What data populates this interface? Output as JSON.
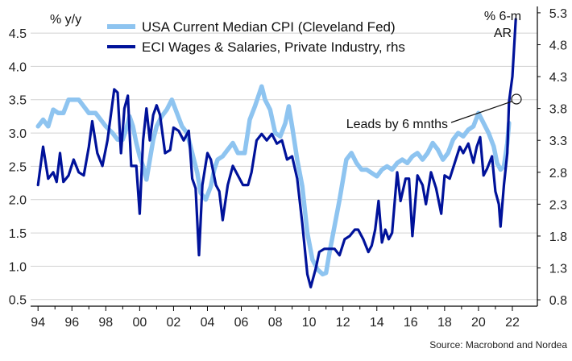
{
  "chart_data": {
    "type": "line",
    "left_axis_label": "% y/y",
    "right_axis_label_line1": "% 6-m",
    "right_axis_label_line2": "AR",
    "left_ylim": [
      0.4,
      4.9
    ],
    "right_ylim": [
      0.7,
      5.4
    ],
    "left_ticks": [
      "0.5",
      "1.0",
      "1.5",
      "2.0",
      "2.5",
      "3.0",
      "3.5",
      "4.0",
      "4.5"
    ],
    "right_ticks": [
      "0.8",
      "1.3",
      "1.8",
      "2.3",
      "2.8",
      "3.3",
      "3.8",
      "4.3",
      "4.8",
      "5.3"
    ],
    "x_range": [
      1993.8,
      2023.0
    ],
    "x_ticks": [
      "94",
      "96",
      "98",
      "00",
      "02",
      "04",
      "06",
      "08",
      "10",
      "12",
      "14",
      "16",
      "18",
      "20",
      "22"
    ],
    "annotation": "Leads by 6 mnths",
    "source": "Source: Macrobond and Nordea",
    "colors": {
      "cpi": "#8ec4f0",
      "eci": "#00129a",
      "grid": "#d2d2d2",
      "axis": "#000000"
    },
    "series": [
      {
        "name": "USA Current Median CPI (Cleveland Fed)",
        "axis": "left",
        "points": [
          [
            1994.0,
            3.1
          ],
          [
            1994.3,
            3.2
          ],
          [
            1994.6,
            3.1
          ],
          [
            1994.9,
            3.35
          ],
          [
            1995.2,
            3.3
          ],
          [
            1995.5,
            3.3
          ],
          [
            1995.8,
            3.5
          ],
          [
            1996.1,
            3.5
          ],
          [
            1996.4,
            3.5
          ],
          [
            1996.7,
            3.4
          ],
          [
            1997.0,
            3.3
          ],
          [
            1997.4,
            3.3
          ],
          [
            1997.7,
            3.2
          ],
          [
            1998.0,
            3.1
          ],
          [
            1998.4,
            3.0
          ],
          [
            1998.7,
            2.9
          ],
          [
            1999.0,
            2.9
          ],
          [
            1999.2,
            3.05
          ],
          [
            1999.4,
            3.25
          ],
          [
            1999.6,
            3.1
          ],
          [
            1999.8,
            2.85
          ],
          [
            2000.0,
            2.65
          ],
          [
            2000.2,
            2.5
          ],
          [
            2000.4,
            2.3
          ],
          [
            2000.6,
            2.6
          ],
          [
            2000.8,
            2.9
          ],
          [
            2001.0,
            3.1
          ],
          [
            2001.3,
            3.25
          ],
          [
            2001.6,
            3.35
          ],
          [
            2001.9,
            3.5
          ],
          [
            2002.2,
            3.3
          ],
          [
            2002.5,
            3.1
          ],
          [
            2002.8,
            3.0
          ],
          [
            2003.1,
            2.7
          ],
          [
            2003.4,
            2.4
          ],
          [
            2003.6,
            2.1
          ],
          [
            2003.9,
            2.0
          ],
          [
            2004.2,
            2.2
          ],
          [
            2004.4,
            2.45
          ],
          [
            2004.6,
            2.6
          ],
          [
            2004.9,
            2.65
          ],
          [
            2005.2,
            2.75
          ],
          [
            2005.5,
            2.85
          ],
          [
            2005.8,
            2.7
          ],
          [
            2006.2,
            2.7
          ],
          [
            2006.5,
            3.2
          ],
          [
            2006.8,
            3.4
          ],
          [
            2007.0,
            3.55
          ],
          [
            2007.2,
            3.7
          ],
          [
            2007.4,
            3.5
          ],
          [
            2007.7,
            3.35
          ],
          [
            2008.0,
            3.0
          ],
          [
            2008.3,
            2.95
          ],
          [
            2008.6,
            3.15
          ],
          [
            2008.8,
            3.4
          ],
          [
            2009.0,
            3.1
          ],
          [
            2009.3,
            2.6
          ],
          [
            2009.6,
            2.2
          ],
          [
            2009.9,
            1.5
          ],
          [
            2010.2,
            1.1
          ],
          [
            2010.5,
            0.95
          ],
          [
            2010.8,
            0.88
          ],
          [
            2011.0,
            0.9
          ],
          [
            2011.2,
            1.2
          ],
          [
            2011.5,
            1.6
          ],
          [
            2011.8,
            2.0
          ],
          [
            2012.0,
            2.3
          ],
          [
            2012.2,
            2.6
          ],
          [
            2012.5,
            2.7
          ],
          [
            2012.8,
            2.55
          ],
          [
            2013.1,
            2.45
          ],
          [
            2013.4,
            2.45
          ],
          [
            2013.7,
            2.4
          ],
          [
            2014.0,
            2.35
          ],
          [
            2014.3,
            2.45
          ],
          [
            2014.6,
            2.5
          ],
          [
            2014.9,
            2.45
          ],
          [
            2015.2,
            2.55
          ],
          [
            2015.5,
            2.6
          ],
          [
            2015.8,
            2.55
          ],
          [
            2016.1,
            2.65
          ],
          [
            2016.4,
            2.7
          ],
          [
            2016.7,
            2.6
          ],
          [
            2017.0,
            2.7
          ],
          [
            2017.3,
            2.85
          ],
          [
            2017.6,
            2.75
          ],
          [
            2017.9,
            2.6
          ],
          [
            2018.2,
            2.7
          ],
          [
            2018.5,
            2.9
          ],
          [
            2018.8,
            3.0
          ],
          [
            2019.1,
            2.95
          ],
          [
            2019.4,
            3.05
          ],
          [
            2019.7,
            3.1
          ],
          [
            2020.0,
            3.3
          ],
          [
            2020.3,
            3.15
          ],
          [
            2020.6,
            3.0
          ],
          [
            2020.9,
            2.8
          ],
          [
            2021.1,
            2.55
          ],
          [
            2021.3,
            2.45
          ],
          [
            2021.5,
            2.5
          ],
          [
            2021.7,
            2.85
          ],
          [
            2021.8,
            3.15
          ]
        ]
      },
      {
        "name": "ECI Wages & Salaries, Private Industry, rhs",
        "axis": "right",
        "points": [
          [
            1994.0,
            2.6
          ],
          [
            1994.3,
            3.2
          ],
          [
            1994.6,
            2.7
          ],
          [
            1994.9,
            2.8
          ],
          [
            1995.1,
            2.65
          ],
          [
            1995.3,
            3.1
          ],
          [
            1995.5,
            2.65
          ],
          [
            1995.8,
            2.75
          ],
          [
            1996.1,
            3.0
          ],
          [
            1996.4,
            2.8
          ],
          [
            1996.7,
            2.75
          ],
          [
            1997.0,
            3.2
          ],
          [
            1997.2,
            3.6
          ],
          [
            1997.5,
            3.1
          ],
          [
            1997.8,
            2.9
          ],
          [
            1998.1,
            3.3
          ],
          [
            1998.3,
            3.7
          ],
          [
            1998.5,
            4.1
          ],
          [
            1998.7,
            4.05
          ],
          [
            1998.9,
            3.1
          ],
          [
            1999.1,
            3.8
          ],
          [
            1999.3,
            4.0
          ],
          [
            1999.5,
            2.9
          ],
          [
            1999.8,
            2.9
          ],
          [
            2000.0,
            2.15
          ],
          [
            2000.2,
            3.3
          ],
          [
            2000.4,
            3.8
          ],
          [
            2000.6,
            3.3
          ],
          [
            2000.8,
            3.7
          ],
          [
            2001.0,
            3.85
          ],
          [
            2001.2,
            3.7
          ],
          [
            2001.5,
            3.1
          ],
          [
            2001.8,
            3.15
          ],
          [
            2002.0,
            3.5
          ],
          [
            2002.3,
            3.45
          ],
          [
            2002.6,
            3.3
          ],
          [
            2002.9,
            3.45
          ],
          [
            2003.1,
            2.7
          ],
          [
            2003.3,
            2.55
          ],
          [
            2003.5,
            1.5
          ],
          [
            2003.7,
            2.6
          ],
          [
            2004.0,
            3.1
          ],
          [
            2004.2,
            3.0
          ],
          [
            2004.5,
            2.6
          ],
          [
            2004.7,
            2.5
          ],
          [
            2004.9,
            2.05
          ],
          [
            2005.2,
            2.6
          ],
          [
            2005.5,
            2.9
          ],
          [
            2005.8,
            2.75
          ],
          [
            2006.1,
            2.6
          ],
          [
            2006.4,
            2.6
          ],
          [
            2006.6,
            2.8
          ],
          [
            2006.9,
            3.3
          ],
          [
            2007.2,
            3.4
          ],
          [
            2007.5,
            3.3
          ],
          [
            2007.8,
            3.4
          ],
          [
            2008.1,
            3.25
          ],
          [
            2008.4,
            3.3
          ],
          [
            2008.7,
            3.0
          ],
          [
            2009.0,
            3.05
          ],
          [
            2009.3,
            2.7
          ],
          [
            2009.6,
            2.0
          ],
          [
            2009.9,
            1.2
          ],
          [
            2010.1,
            1.0
          ],
          [
            2010.4,
            1.3
          ],
          [
            2010.6,
            1.55
          ],
          [
            2010.9,
            1.6
          ],
          [
            2011.2,
            1.6
          ],
          [
            2011.5,
            1.6
          ],
          [
            2011.8,
            1.5
          ],
          [
            2012.1,
            1.75
          ],
          [
            2012.4,
            1.8
          ],
          [
            2012.7,
            1.9
          ],
          [
            2012.9,
            1.9
          ],
          [
            2013.2,
            1.75
          ],
          [
            2013.5,
            1.55
          ],
          [
            2013.7,
            1.65
          ],
          [
            2013.9,
            1.9
          ],
          [
            2014.1,
            2.35
          ],
          [
            2014.3,
            1.7
          ],
          [
            2014.5,
            1.9
          ],
          [
            2014.7,
            1.75
          ],
          [
            2014.9,
            1.85
          ],
          [
            2015.2,
            2.8
          ],
          [
            2015.4,
            2.35
          ],
          [
            2015.7,
            2.7
          ],
          [
            2015.9,
            2.7
          ],
          [
            2016.1,
            1.8
          ],
          [
            2016.4,
            2.75
          ],
          [
            2016.7,
            2.6
          ],
          [
            2016.9,
            2.3
          ],
          [
            2017.2,
            2.8
          ],
          [
            2017.5,
            2.55
          ],
          [
            2017.8,
            2.15
          ],
          [
            2018.0,
            2.75
          ],
          [
            2018.3,
            2.7
          ],
          [
            2018.6,
            2.95
          ],
          [
            2018.9,
            3.2
          ],
          [
            2019.1,
            3.1
          ],
          [
            2019.4,
            3.25
          ],
          [
            2019.7,
            2.95
          ],
          [
            2019.9,
            3.2
          ],
          [
            2020.1,
            3.35
          ],
          [
            2020.3,
            2.75
          ],
          [
            2020.5,
            2.85
          ],
          [
            2020.8,
            3.05
          ],
          [
            2021.0,
            2.5
          ],
          [
            2021.2,
            2.3
          ],
          [
            2021.3,
            1.95
          ],
          [
            2021.5,
            2.6
          ],
          [
            2021.7,
            3.1
          ],
          [
            2021.8,
            3.9
          ],
          [
            2022.0,
            4.3
          ],
          [
            2022.2,
            5.2
          ]
        ]
      }
    ]
  },
  "legend": [
    {
      "label": "USA Current Median CPI (Cleveland Fed)"
    },
    {
      "label": "ECI Wages & Salaries, Private Industry, rhs"
    }
  ]
}
